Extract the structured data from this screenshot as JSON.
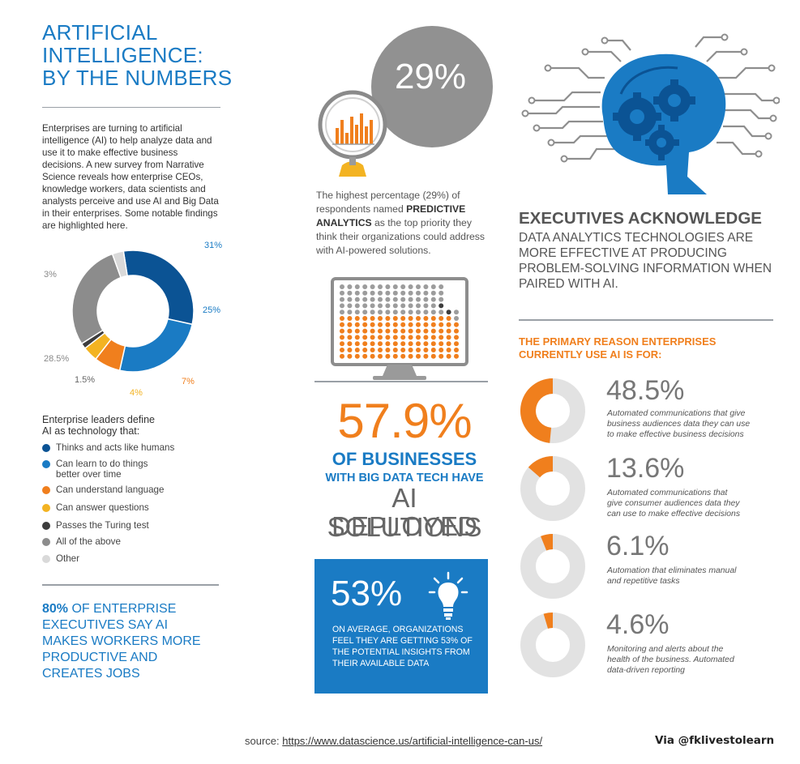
{
  "header": {
    "title_lines": [
      "ARTIFICIAL",
      "INTELLIGENCE:",
      "BY THE NUMBERS"
    ],
    "intro": "Enterprises are turning to artificial intelligence (AI) to help analyze data and use it to make effective business decisions. A new survey from Narrative Science reveals how enterprise CEOs, knowledge workers, data scientists and analysts perceive and use AI and Big Data in their enterprises. Some notable findings are highlighted here."
  },
  "definition": {
    "heading_lines": [
      "Enterprise leaders define",
      "AI as technology that:"
    ],
    "items": [
      {
        "label_lines": [
          "Thinks and acts like humans"
        ],
        "color": "#0b5394"
      },
      {
        "label_lines": [
          "Can learn to do things",
          "better over time"
        ],
        "color": "#1a7bc4"
      },
      {
        "label_lines": [
          "Can understand language"
        ],
        "color": "#f07f1d"
      },
      {
        "label_lines": [
          "Can answer questions"
        ],
        "color": "#f3b322"
      },
      {
        "label_lines": [
          "Passes the Turing test"
        ],
        "color": "#3d3d3d"
      },
      {
        "label_lines": [
          "All of the above"
        ],
        "color": "#8c8c8c"
      },
      {
        "label_lines": [
          "Other"
        ],
        "color": "#d9d9d9"
      }
    ]
  },
  "stat80": {
    "bold": "80%",
    "rest_line1": " OF ENTERPRISE",
    "lines": [
      "EXECUTIVES SAY AI",
      "MAKES WORKERS MORE",
      "PRODUCTIVE AND",
      "CREATES JOBS"
    ]
  },
  "predictive": {
    "value": "29%",
    "text_before": "The highest percentage (29%) of respondents named ",
    "text_bold": "PREDICTIVE ANALYTICS",
    "text_after": " as the top priority they think their organizations could address with AI-powered solutions.",
    "colors": {
      "circle": "#919191",
      "bars": "#f07f1d",
      "stand": "#f3b322"
    }
  },
  "bigdata": {
    "value": "57.9%",
    "line1": "OF BUSINESSES",
    "line2": "WITH BIG DATA TECH HAVE",
    "line3": "AI SOLUTIONS",
    "line4": "DEPLOYED",
    "grid": {
      "cols": 16,
      "rows": 12,
      "filled_fraction": 0.579,
      "fill_color": "#f07f1d",
      "empty_color": "#9c9c9c",
      "dark_color": "#3d3d3d"
    }
  },
  "insights": {
    "value": "53%",
    "text": "ON AVERAGE, ORGANIZATIONS FEEL THEY ARE GETTING 53% OF THE POTENTIAL INSIGHTS FROM THEIR AVAILABLE DATA",
    "bg_color": "#1a7bc4"
  },
  "executives": {
    "title": "EXECUTIVES ACKNOWLEDGE",
    "body": "DATA ANALYTICS TECHNOLOGIES ARE MORE EFFECTIVE AT PRODUCING PROBLEM-SOLVING INFORMATION WHEN PAIRED WITH AI."
  },
  "reasons": {
    "title_lines": [
      "THE PRIMARY REASON ENTERPRISES",
      "CURRENTLY USE AI IS FOR:"
    ],
    "accent": "#f07f1d",
    "track": "#e2e2e2"
  },
  "footer": {
    "source_label": "source: ",
    "source_url": "https://www.datascience.us/artificial-intelligence-can-us/",
    "via": "Via @fklivestolearn"
  },
  "chart_data": [
    {
      "type": "pie",
      "categories": [
        "Thinks and acts like humans",
        "Can learn to do things better over time",
        "Can understand language",
        "Can answer questions",
        "Passes the Turing test",
        "All of the above",
        "Other"
      ],
      "values": [
        31,
        25,
        7,
        4,
        1.5,
        28.5,
        3
      ],
      "value_labels": [
        "31%",
        "25%",
        "7%",
        "4%",
        "1.5%",
        "28.5%",
        "3%"
      ],
      "colors": [
        "#0b5394",
        "#1a7bc4",
        "#f07f1d",
        "#f3b322",
        "#3d3d3d",
        "#8c8c8c",
        "#d9d9d9"
      ],
      "donut": true
    },
    {
      "type": "pie",
      "donut": true,
      "items": [
        {
          "value": 48.5,
          "label": "48.5%",
          "desc_lines": [
            "Automated communications that give",
            "business audiences data they can use",
            "to make effective business decisions"
          ]
        },
        {
          "value": 13.6,
          "label": "13.6%",
          "desc_lines": [
            "Automated communications that",
            "give consumer audiences data they",
            "can use to make effective decisions"
          ]
        },
        {
          "value": 6.1,
          "label": "6.1%",
          "desc_lines": [
            "Automation that eliminates manual",
            "and repetitive tasks"
          ]
        },
        {
          "value": 4.6,
          "label": "4.6%",
          "desc_lines": [
            "Monitoring and alerts about the",
            "health of the business. Automated",
            "data-driven reporting"
          ]
        }
      ]
    }
  ]
}
